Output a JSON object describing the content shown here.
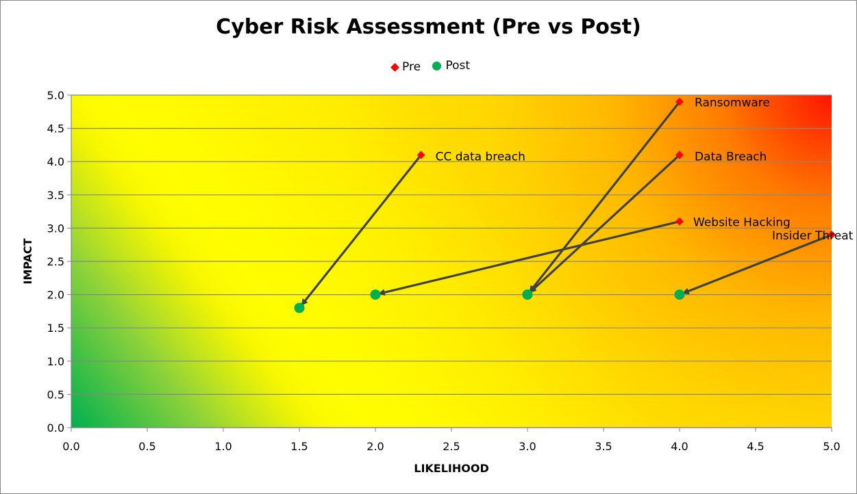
{
  "chart_data": {
    "type": "scatter",
    "title": "Cyber Risk Assessment (Pre vs Post)",
    "xlabel": "LIKELIHOOD",
    "ylabel": "IMPACT",
    "xlim": [
      0,
      5
    ],
    "ylim": [
      0,
      5
    ],
    "x_ticks": [
      "0.0",
      "0.5",
      "1.0",
      "1.5",
      "2.0",
      "2.5",
      "3.0",
      "3.5",
      "4.0",
      "4.5",
      "5.0"
    ],
    "y_ticks": [
      "0.0",
      "0.5",
      "1.0",
      "1.5",
      "2.0",
      "2.5",
      "3.0",
      "3.5",
      "4.0",
      "4.5",
      "5.0"
    ],
    "grid": "horizontal",
    "legend": "top-center",
    "series": [
      {
        "name": "Pre",
        "marker": "diamond",
        "color": "#ff0000",
        "points": [
          {
            "label": "Ransomware",
            "x": 4.0,
            "y": 4.9
          },
          {
            "label": "CC data breach",
            "x": 2.3,
            "y": 4.1
          },
          {
            "label": "Data Breach",
            "x": 4.0,
            "y": 4.1
          },
          {
            "label": "Website Hacking",
            "x": 4.0,
            "y": 3.1
          },
          {
            "label": "Insider Threat",
            "x": 5.0,
            "y": 2.9
          }
        ]
      },
      {
        "name": "Post",
        "marker": "circle",
        "color": "#00b050",
        "points": [
          {
            "x": 3.0,
            "y": 2.0
          },
          {
            "x": 1.5,
            "y": 1.8
          },
          {
            "x": 3.0,
            "y": 2.0
          },
          {
            "x": 2.0,
            "y": 2.0
          },
          {
            "x": 4.0,
            "y": 2.0
          }
        ]
      }
    ],
    "arrows": [
      {
        "from": [
          4.0,
          4.9
        ],
        "to": [
          3.0,
          2.0
        ]
      },
      {
        "from": [
          2.3,
          4.1
        ],
        "to": [
          1.5,
          1.8
        ]
      },
      {
        "from": [
          4.0,
          4.1
        ],
        "to": [
          3.0,
          2.0
        ]
      },
      {
        "from": [
          4.0,
          3.1
        ],
        "to": [
          2.0,
          2.0
        ]
      },
      {
        "from": [
          5.0,
          2.9
        ],
        "to": [
          4.0,
          2.0
        ]
      }
    ],
    "background": "gradient green-yellow-orange-red (low to high risk)"
  }
}
